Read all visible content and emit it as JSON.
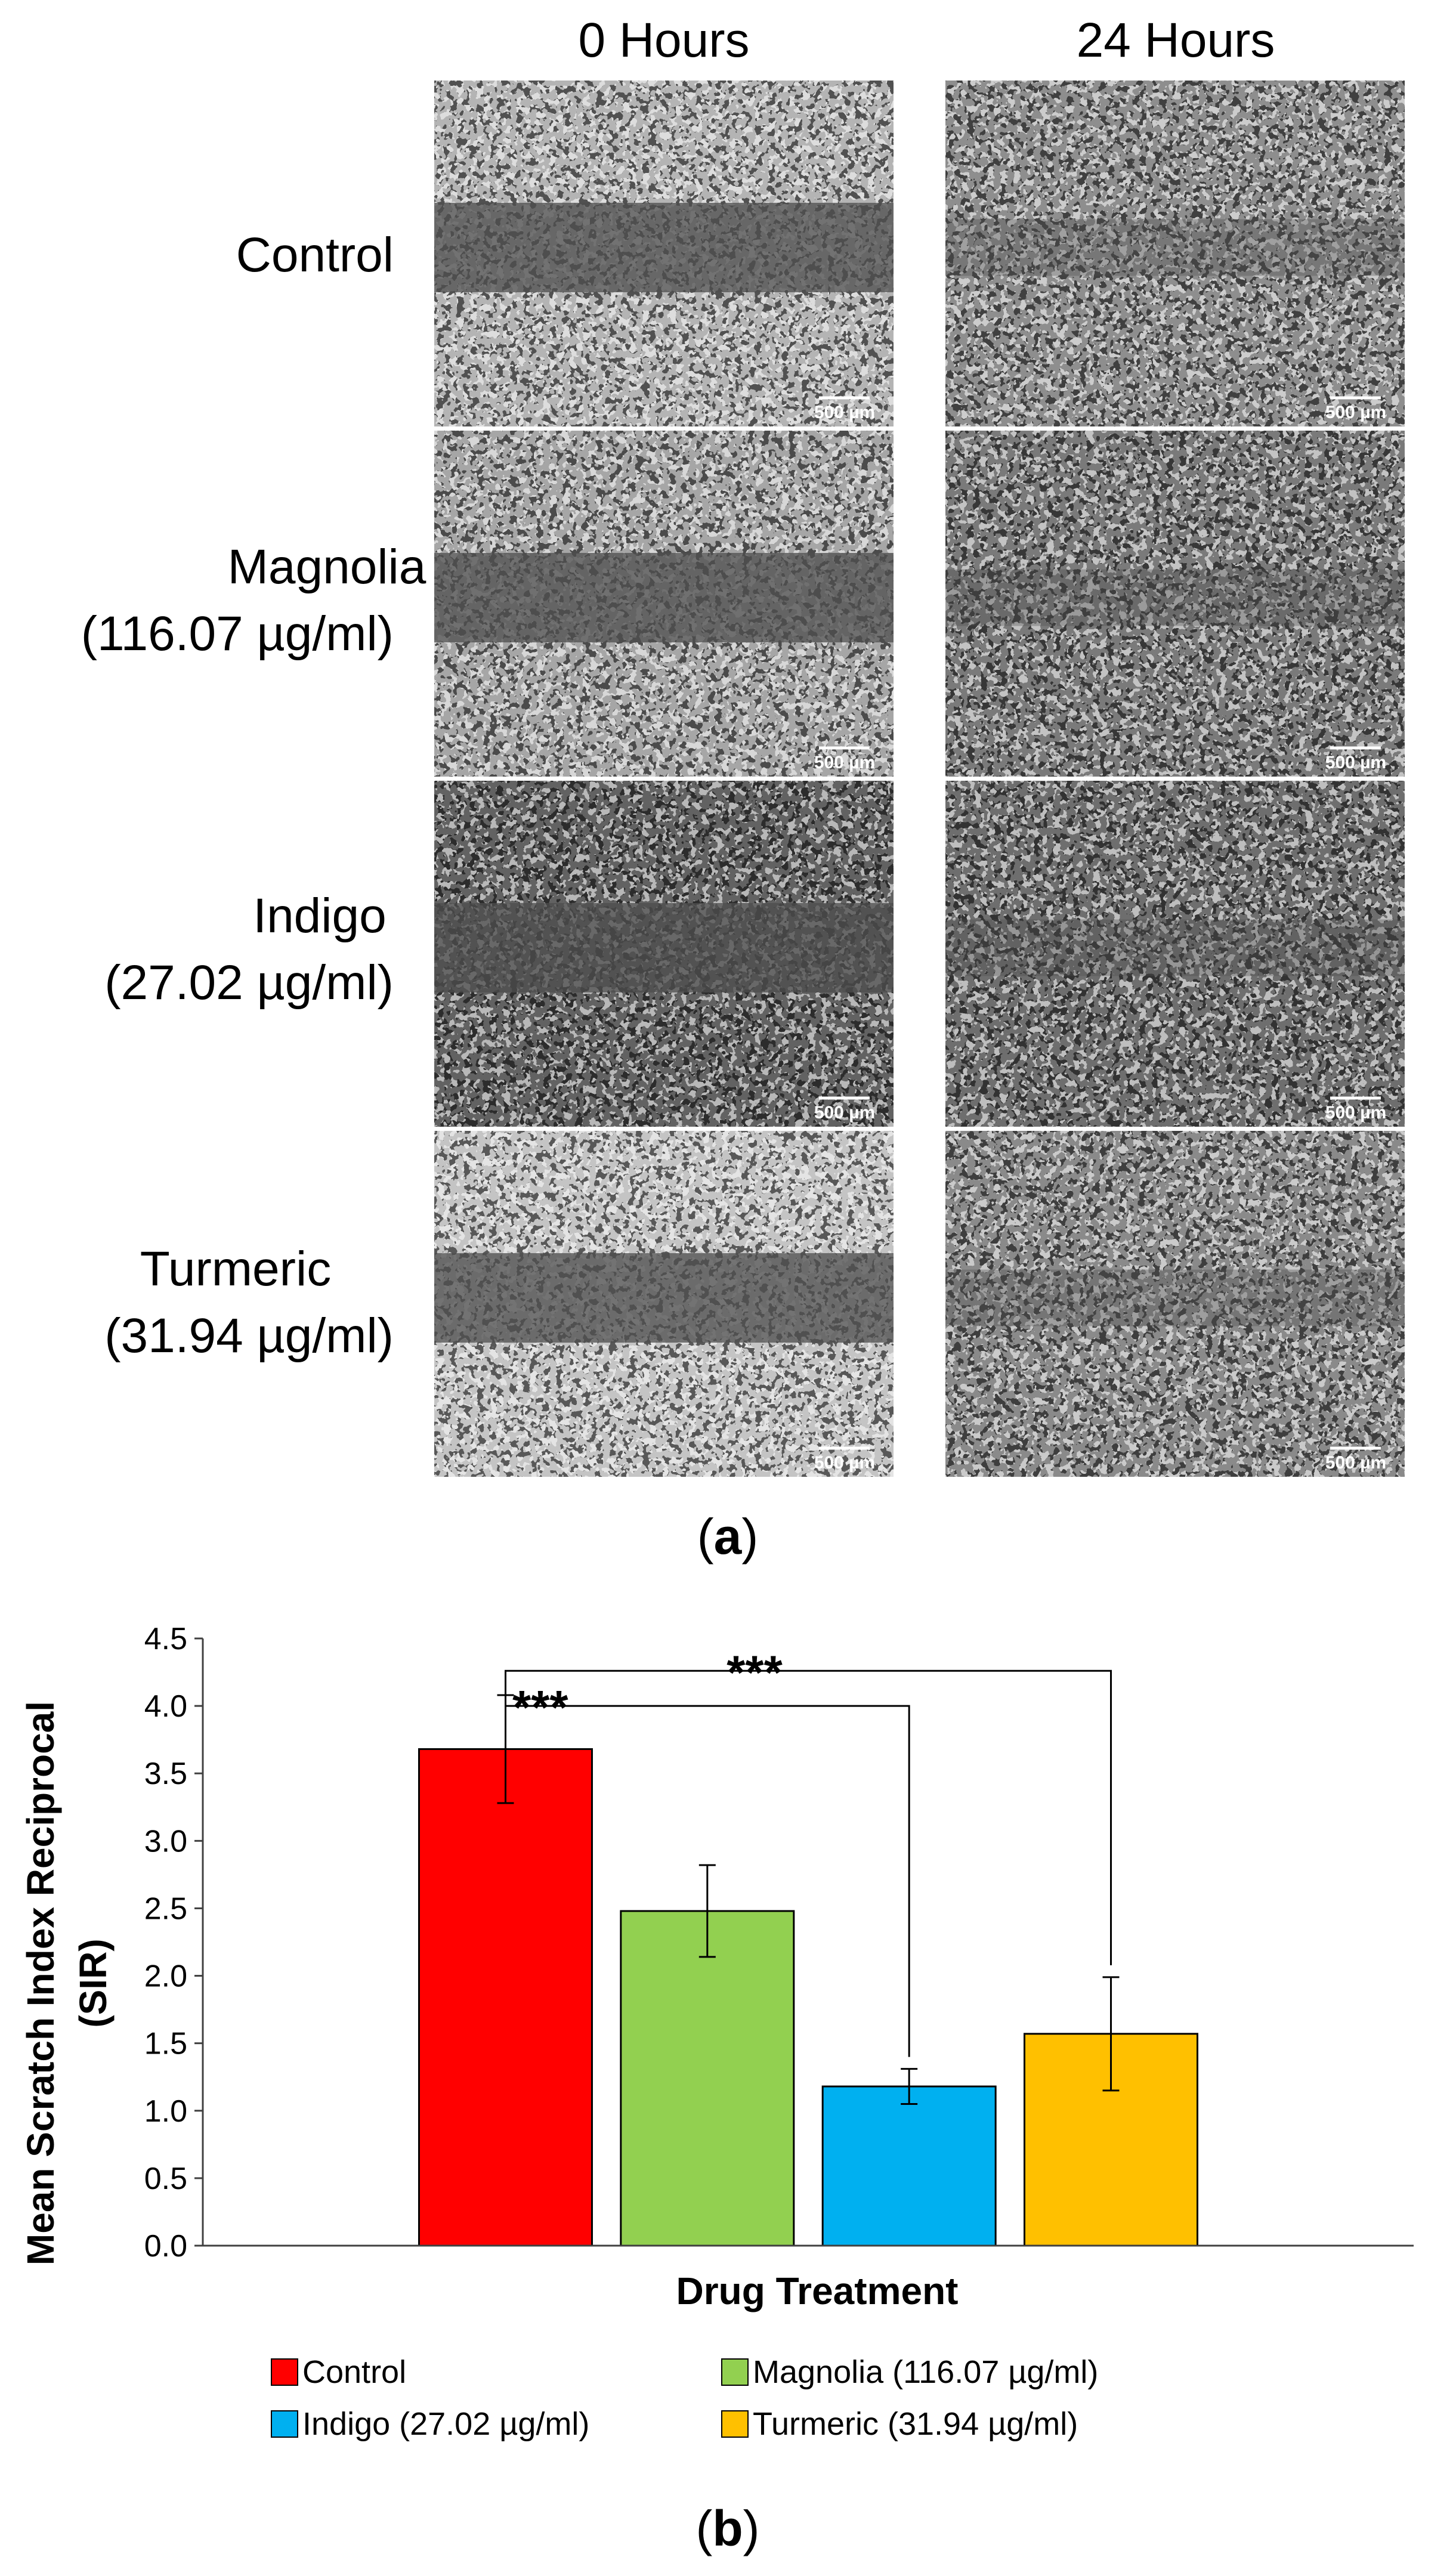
{
  "panel_a": {
    "columns": [
      "0 Hours",
      "24 Hours"
    ],
    "rows": [
      {
        "line1": "Control",
        "line2": ""
      },
      {
        "line1": "Magnolia",
        "line2": "(116.07 µg/ml)"
      },
      {
        "line1": "Indigo",
        "line2": "(27.02 µg/ml)"
      },
      {
        "line1": "Turmeric",
        "line2": "(31.94 µg/ml)"
      }
    ],
    "scale_bar_label": "500 µm",
    "tone": [
      [
        "#b4b4b4",
        "#8e8e8e"
      ],
      [
        "#a6a6a6",
        "#7a7a7a"
      ],
      [
        "#626262",
        "#6e6e6e"
      ],
      [
        "#c4c4c4",
        "#8a8a8a"
      ]
    ],
    "panel_label": {
      "open": "(",
      "letter": "a",
      "close": ")"
    }
  },
  "chart_data": {
    "type": "bar",
    "categories": [
      "Control",
      "Magnolia (116.07 µg/ml)",
      "Indigo (27.02 µg/ml)",
      "Turmeric (31.94 µg/ml)"
    ],
    "values": [
      3.68,
      2.48,
      1.18,
      1.57
    ],
    "errors": [
      0.4,
      0.34,
      0.13,
      0.42
    ],
    "colors": [
      "#ff0000",
      "#92d050",
      "#00b0f0",
      "#ffc000"
    ],
    "ylim": [
      0,
      4.5
    ],
    "yticks": [
      "0.0",
      "0.5",
      "1.0",
      "1.5",
      "2.0",
      "2.5",
      "3.0",
      "3.5",
      "4.0",
      "4.5"
    ],
    "xlabel": "Drug Treatment",
    "ylabel_line1": "Mean Scratch Index Reciprocal",
    "ylabel_line2": "(SIR)",
    "significance": [
      {
        "from": "Control",
        "to": "Indigo (27.02 µg/ml)",
        "label": "***"
      },
      {
        "from": "Control",
        "to": "Turmeric (31.94 µg/ml)",
        "label": "***"
      }
    ],
    "legend": [
      "Control",
      "Magnolia (116.07 µg/ml)",
      "Indigo (27.02 µg/ml)",
      "Turmeric (31.94 µg/ml)"
    ],
    "legend_placement": "bottom",
    "panel_label": {
      "open": "(",
      "letter": "b",
      "close": ")"
    }
  }
}
